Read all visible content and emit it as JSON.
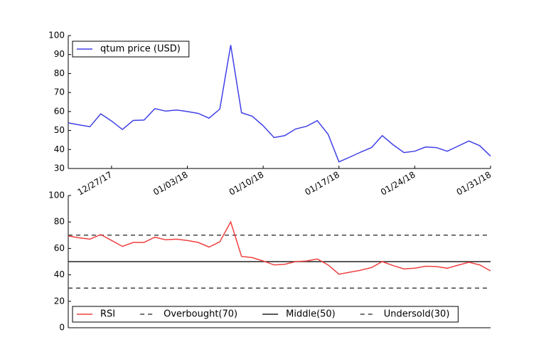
{
  "chart_data": [
    {
      "type": "line",
      "x": [
        "12/23/17",
        "12/24/17",
        "12/25/17",
        "12/26/17",
        "12/27/17",
        "12/28/17",
        "12/29/17",
        "12/30/17",
        "12/31/17",
        "01/01/18",
        "01/02/18",
        "01/03/18",
        "01/04/18",
        "01/05/18",
        "01/06/18",
        "01/07/18",
        "01/08/18",
        "01/09/18",
        "01/10/18",
        "01/11/18",
        "01/12/18",
        "01/13/18",
        "01/14/18",
        "01/15/18",
        "01/16/18",
        "01/17/18",
        "01/18/18",
        "01/19/18",
        "01/20/18",
        "01/21/18",
        "01/22/18",
        "01/23/18",
        "01/24/18",
        "01/25/18",
        "01/26/18",
        "01/27/18",
        "01/28/18",
        "01/29/18",
        "01/30/18",
        "01/31/18"
      ],
      "series": [
        {
          "name": "qtum price (USD)",
          "color": "#4040e8",
          "values": [
            54,
            53,
            52,
            58.8,
            55,
            50.5,
            55.3,
            55.5,
            61.5,
            60.2,
            60.8,
            60,
            59,
            56.5,
            61.3,
            95,
            59.4,
            57.5,
            52.5,
            46.3,
            47.3,
            50.8,
            52.2,
            55.2,
            48,
            33.5,
            36,
            38.6,
            41,
            47.3,
            42.5,
            38.4,
            39.1,
            41.3,
            41,
            39.1,
            41.8,
            44.5,
            42,
            36.5
          ]
        }
      ],
      "xlim": [
        "12/23/17",
        "01/31/18"
      ],
      "xticks": [
        "12/27/17",
        "01/03/18",
        "01/10/18",
        "01/17/18",
        "01/24/18",
        "01/31/18"
      ],
      "ylim": [
        30,
        100
      ],
      "yticks": [
        30,
        40,
        50,
        60,
        70,
        80,
        90,
        100
      ],
      "legend": "upper left"
    },
    {
      "type": "line",
      "x": [
        "12/23/17",
        "12/24/17",
        "12/25/17",
        "12/26/17",
        "12/27/17",
        "12/28/17",
        "12/29/17",
        "12/30/17",
        "12/31/17",
        "01/01/18",
        "01/02/18",
        "01/03/18",
        "01/04/18",
        "01/05/18",
        "01/06/18",
        "01/07/18",
        "01/08/18",
        "01/09/18",
        "01/10/18",
        "01/11/18",
        "01/12/18",
        "01/13/18",
        "01/14/18",
        "01/15/18",
        "01/16/18",
        "01/17/18",
        "01/18/18",
        "01/19/18",
        "01/20/18",
        "01/21/18",
        "01/22/18",
        "01/23/18",
        "01/24/18",
        "01/25/18",
        "01/26/18",
        "01/27/18",
        "01/28/18",
        "01/29/18",
        "01/30/18",
        "01/31/18"
      ],
      "series": [
        {
          "name": "RSI",
          "color": "#f04040",
          "values": [
            69.4,
            68,
            67,
            70.5,
            66,
            61.5,
            64.5,
            64.5,
            68.5,
            66.5,
            67,
            66,
            64.5,
            61,
            65,
            80,
            54,
            53,
            50.5,
            47.5,
            48,
            50,
            50.5,
            52,
            47.5,
            40.5,
            42,
            43.5,
            45.5,
            50,
            47,
            44.5,
            45,
            46.5,
            46.3,
            45,
            47.3,
            49.5,
            47.5,
            43
          ]
        }
      ],
      "hlines": [
        {
          "name": "Overbought(70)",
          "value": 70,
          "color": "#444444",
          "dash": true
        },
        {
          "name": "Middle(50)",
          "value": 50,
          "color": "#222222",
          "dash": false
        },
        {
          "name": "Undersold(30)",
          "value": 30,
          "color": "#444444",
          "dash": true
        }
      ],
      "xlim": [
        "12/23/17",
        "01/31/18"
      ],
      "ylim": [
        0,
        100
      ],
      "yticks": [
        0,
        20,
        40,
        60,
        80,
        100
      ],
      "legend": "lower left"
    }
  ]
}
